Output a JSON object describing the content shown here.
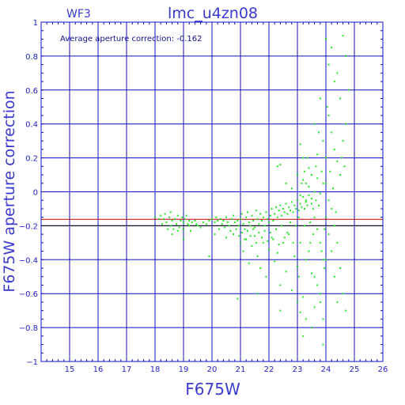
{
  "chart_data": {
    "type": "scatter",
    "title": "lmc_u4zn08",
    "corner_label": "WF3",
    "annotation": "Average aperture correction: -0.162",
    "xlabel": "F675W",
    "ylabel": "F675W aperture correction",
    "xlim": [
      14,
      26
    ],
    "ylim": [
      -1,
      1
    ],
    "x_ticks": [
      15,
      16,
      17,
      18,
      19,
      20,
      21,
      22,
      23,
      24,
      25,
      26
    ],
    "y_ticks": [
      -1,
      -0.8,
      -0.6,
      -0.4,
      -0.2,
      0,
      0.2,
      0.4,
      0.6,
      0.8,
      1
    ],
    "x_tick_labels": [
      "15",
      "16",
      "17",
      "18",
      "19",
      "20",
      "21",
      "22",
      "23",
      "24",
      "25",
      "26"
    ],
    "y_tick_labels": [
      "−1",
      "−0.8",
      "−0.6",
      "−0.4",
      "−0.2",
      "0",
      "0.2",
      "0.4",
      "0.6",
      "0.8",
      "1"
    ],
    "grid": true,
    "reference_lines": [
      {
        "y": -0.162,
        "color": "#c80000"
      },
      {
        "y": -0.2,
        "color": "#000000"
      }
    ],
    "point_color": "#22e822",
    "series": [
      {
        "values": [
          [
            18.0,
            -0.15
          ],
          [
            18.2,
            -0.14
          ],
          [
            18.3,
            -0.16
          ],
          [
            18.35,
            -0.13
          ],
          [
            18.4,
            -0.18
          ],
          [
            18.5,
            -0.15
          ],
          [
            18.55,
            -0.2
          ],
          [
            18.6,
            -0.17
          ],
          [
            18.65,
            -0.22
          ],
          [
            18.7,
            -0.16
          ],
          [
            18.75,
            -0.19
          ],
          [
            18.8,
            -0.14
          ],
          [
            18.85,
            -0.21
          ],
          [
            18.9,
            -0.17
          ],
          [
            18.95,
            -0.15
          ],
          [
            19.0,
            -0.18
          ],
          [
            19.05,
            -0.16
          ],
          [
            19.1,
            -0.14
          ],
          [
            19.15,
            -0.19
          ],
          [
            19.2,
            -0.17
          ],
          [
            18.6,
            -0.25
          ],
          [
            18.8,
            -0.23
          ],
          [
            19.0,
            -0.22
          ],
          [
            19.2,
            -0.2
          ],
          [
            19.3,
            -0.18
          ],
          [
            19.4,
            -0.17
          ],
          [
            19.5,
            -0.2
          ],
          [
            19.6,
            -0.21
          ],
          [
            19.7,
            -0.18
          ],
          [
            19.8,
            -0.19
          ],
          [
            19.9,
            -0.17
          ],
          [
            20.0,
            -0.16
          ],
          [
            20.1,
            -0.18
          ],
          [
            20.15,
            -0.15
          ],
          [
            20.2,
            -0.17
          ],
          [
            20.3,
            -0.16
          ],
          [
            20.35,
            -0.19
          ],
          [
            20.4,
            -0.17
          ],
          [
            20.5,
            -0.15
          ],
          [
            20.55,
            -0.18
          ],
          [
            20.6,
            -0.2
          ],
          [
            20.7,
            -0.16
          ],
          [
            20.75,
            -0.14
          ],
          [
            20.8,
            -0.18
          ],
          [
            20.9,
            -0.17
          ],
          [
            20.95,
            -0.2
          ],
          [
            21.0,
            -0.16
          ],
          [
            21.05,
            -0.13
          ],
          [
            21.1,
            -0.19
          ],
          [
            21.15,
            -0.22
          ],
          [
            21.2,
            -0.15
          ],
          [
            21.25,
            -0.12
          ],
          [
            21.3,
            -0.18
          ],
          [
            21.35,
            -0.2
          ],
          [
            21.4,
            -0.14
          ],
          [
            21.45,
            -0.17
          ],
          [
            21.5,
            -0.21
          ],
          [
            21.55,
            -0.11
          ],
          [
            21.6,
            -0.16
          ],
          [
            21.65,
            -0.19
          ],
          [
            21.7,
            -0.13
          ],
          [
            21.75,
            -0.17
          ],
          [
            21.8,
            -0.15
          ],
          [
            21.85,
            -0.2
          ],
          [
            21.9,
            -0.12
          ],
          [
            21.95,
            -0.16
          ],
          [
            22.0,
            -0.18
          ],
          [
            22.05,
            -0.14
          ],
          [
            22.1,
            -0.1
          ],
          [
            22.15,
            -0.17
          ],
          [
            22.2,
            -0.13
          ],
          [
            22.25,
            -0.09
          ],
          [
            22.3,
            -0.15
          ],
          [
            22.35,
            -0.11
          ],
          [
            22.4,
            -0.08
          ],
          [
            22.45,
            -0.14
          ],
          [
            22.5,
            -0.1
          ],
          [
            22.55,
            -0.12
          ],
          [
            22.6,
            -0.07
          ],
          [
            22.65,
            -0.13
          ],
          [
            22.7,
            -0.09
          ],
          [
            22.75,
            -0.11
          ],
          [
            22.8,
            -0.06
          ],
          [
            22.85,
            -0.12
          ],
          [
            22.9,
            -0.08
          ],
          [
            22.95,
            -0.1
          ],
          [
            23.0,
            -0.05
          ],
          [
            23.05,
            -0.11
          ],
          [
            23.1,
            -0.07
          ],
          [
            23.15,
            -0.09
          ],
          [
            23.2,
            -0.03
          ],
          [
            23.25,
            -0.1
          ],
          [
            23.3,
            -0.06
          ],
          [
            23.35,
            -0.08
          ],
          [
            23.4,
            -0.02
          ],
          [
            23.5,
            -0.07
          ],
          [
            21.0,
            -0.3
          ],
          [
            21.1,
            -0.35
          ],
          [
            21.2,
            -0.28
          ],
          [
            21.3,
            -0.42
          ],
          [
            21.4,
            -0.32
          ],
          [
            21.5,
            -0.26
          ],
          [
            21.6,
            -0.38
          ],
          [
            21.7,
            -0.45
          ],
          [
            21.8,
            -0.3
          ],
          [
            21.9,
            -0.5
          ],
          [
            22.0,
            -0.34
          ],
          [
            22.1,
            -0.27
          ],
          [
            22.2,
            -0.41
          ],
          [
            22.3,
            -0.36
          ],
          [
            22.4,
            -0.55
          ],
          [
            22.5,
            -0.3
          ],
          [
            22.6,
            -0.47
          ],
          [
            22.7,
            -0.25
          ],
          [
            22.8,
            -0.58
          ],
          [
            22.9,
            -0.38
          ],
          [
            23.0,
            -0.44
          ],
          [
            23.1,
            -0.3
          ],
          [
            23.2,
            -0.62
          ],
          [
            23.3,
            -0.4
          ],
          [
            23.4,
            -0.35
          ],
          [
            23.5,
            -0.48
          ],
          [
            20.9,
            -0.63
          ],
          [
            21.6,
            -0.6
          ],
          [
            22.4,
            -0.7
          ],
          [
            23.0,
            -0.65
          ],
          [
            23.1,
            -0.71
          ],
          [
            23.2,
            -0.85
          ],
          [
            23.3,
            -0.75
          ],
          [
            19.0,
            -0.28
          ],
          [
            19.9,
            -0.38
          ],
          [
            20.5,
            -0.27
          ],
          [
            20.1,
            -0.25
          ],
          [
            22.3,
            0.15
          ],
          [
            22.4,
            0.16
          ],
          [
            22.6,
            0.05
          ],
          [
            22.8,
            0.02
          ],
          [
            23.0,
            0.1
          ],
          [
            23.1,
            0.28
          ],
          [
            23.2,
            0.2
          ],
          [
            23.3,
            0.05
          ],
          [
            23.4,
            0.14
          ],
          [
            23.5,
            0.1
          ],
          [
            23.6,
            0.4
          ],
          [
            23.7,
            0.22
          ],
          [
            23.8,
            0.55
          ],
          [
            23.9,
            0.3
          ],
          [
            23.1,
            -0.02
          ],
          [
            23.2,
            0.07
          ],
          [
            23.3,
            -0.05
          ],
          [
            23.4,
            0.03
          ],
          [
            23.5,
            -0.04
          ],
          [
            23.6,
            0.0
          ],
          [
            23.7,
            0.08
          ],
          [
            23.8,
            -0.01
          ],
          [
            23.9,
            0.05
          ],
          [
            23.6,
            -0.15
          ],
          [
            23.7,
            -0.22
          ],
          [
            23.8,
            -0.3
          ],
          [
            23.9,
            -0.4
          ],
          [
            23.6,
            -0.5
          ],
          [
            23.7,
            -0.55
          ],
          [
            23.8,
            -0.65
          ],
          [
            23.9,
            -0.75
          ],
          [
            23.5,
            -0.8
          ],
          [
            23.9,
            -0.9
          ],
          [
            24.0,
            0.9
          ],
          [
            24.1,
            0.75
          ],
          [
            24.2,
            0.85
          ],
          [
            24.3,
            0.65
          ],
          [
            24.4,
            0.7
          ],
          [
            24.5,
            0.55
          ],
          [
            24.6,
            0.92
          ],
          [
            24.7,
            0.8
          ],
          [
            24.1,
            0.45
          ],
          [
            24.2,
            0.35
          ],
          [
            24.3,
            0.25
          ],
          [
            24.4,
            0.18
          ],
          [
            24.5,
            0.1
          ],
          [
            24.6,
            0.3
          ],
          [
            24.7,
            0.4
          ],
          [
            24.8,
            0.6
          ],
          [
            24.0,
            0.05
          ],
          [
            24.1,
            -0.05
          ],
          [
            24.2,
            -0.1
          ],
          [
            24.3,
            -0.2
          ],
          [
            24.4,
            -0.3
          ],
          [
            24.5,
            -0.45
          ],
          [
            24.6,
            -0.6
          ],
          [
            24.7,
            -0.7
          ],
          [
            24.1,
            -0.25
          ],
          [
            24.2,
            -0.35
          ],
          [
            24.3,
            -0.5
          ],
          [
            24.4,
            -0.65
          ],
          [
            24.0,
            -0.4
          ],
          [
            24.0,
            0.2
          ],
          [
            24.0,
            -0.15
          ],
          [
            24.05,
            0.5
          ],
          [
            24.15,
            0.12
          ],
          [
            24.25,
            0.02
          ],
          [
            24.35,
            -0.12
          ],
          [
            24.55,
            0.2
          ],
          [
            24.65,
            0.15
          ],
          [
            23.85,
            0.12
          ],
          [
            23.95,
            -0.22
          ],
          [
            23.75,
            0.35
          ],
          [
            23.65,
            0.15
          ],
          [
            23.55,
            -0.25
          ],
          [
            23.45,
            -0.3
          ],
          [
            23.35,
            0.2
          ],
          [
            23.25,
            0.12
          ],
          [
            23.15,
            0.05
          ],
          [
            23.05,
            -0.5
          ],
          [
            22.95,
            -0.2
          ],
          [
            22.85,
            -0.3
          ],
          [
            22.75,
            -0.18
          ],
          [
            22.65,
            -0.24
          ],
          [
            22.55,
            -0.27
          ],
          [
            22.45,
            -0.2
          ],
          [
            22.35,
            -0.31
          ],
          [
            22.25,
            -0.22
          ],
          [
            22.15,
            -0.28
          ],
          [
            22.05,
            -0.24
          ],
          [
            21.95,
            -0.29
          ],
          [
            21.85,
            -0.23
          ],
          [
            21.75,
            -0.27
          ],
          [
            21.65,
            -0.24
          ],
          [
            21.55,
            -0.3
          ],
          [
            21.45,
            -0.22
          ],
          [
            21.35,
            -0.26
          ],
          [
            21.25,
            -0.23
          ],
          [
            21.15,
            -0.28
          ],
          [
            21.05,
            -0.24
          ],
          [
            20.95,
            -0.26
          ],
          [
            20.85,
            -0.22
          ],
          [
            20.75,
            -0.25
          ],
          [
            20.65,
            -0.23
          ],
          [
            20.45,
            -0.21
          ],
          [
            20.25,
            -0.22
          ],
          [
            19.45,
            -0.19
          ],
          [
            19.25,
            -0.23
          ],
          [
            18.45,
            -0.22
          ],
          [
            18.55,
            -0.12
          ],
          [
            18.25,
            -0.19
          ],
          [
            18.15,
            -0.16
          ],
          [
            23.05,
            -0.15
          ],
          [
            23.25,
            -0.2
          ],
          [
            23.45,
            -0.18
          ],
          [
            23.55,
            -0.1
          ],
          [
            23.65,
            -0.05
          ],
          [
            23.75,
            -0.08
          ],
          [
            23.85,
            -0.35
          ],
          [
            23.95,
            -0.45
          ],
          [
            23.8,
            -0.6
          ],
          [
            23.6,
            -0.68
          ]
        ]
      }
    ]
  }
}
